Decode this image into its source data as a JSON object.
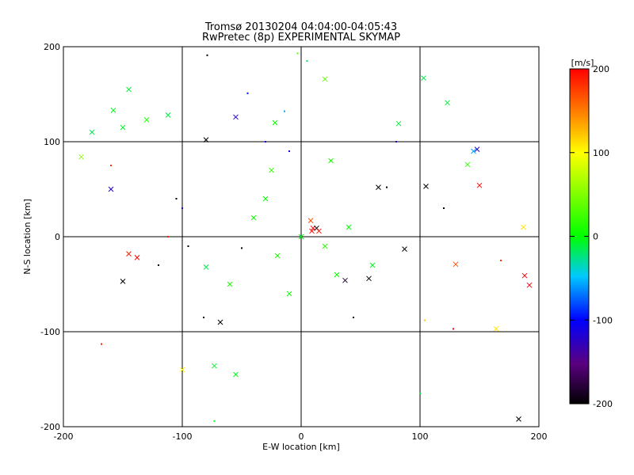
{
  "chart_data": {
    "type": "scatter",
    "title_line1": "Tromsø 20130204 04:04:00-04:05:43",
    "title_line2": "RwPretec (8p) EXPERIMENTAL SKYMAP",
    "xlabel": "E-W location [km]",
    "ylabel": "N-S location [km]",
    "xlim": [
      -200,
      200
    ],
    "ylim": [
      -200,
      200
    ],
    "xticks": [
      -200,
      -100,
      0,
      100,
      200
    ],
    "yticks": [
      -200,
      -100,
      0,
      100,
      200
    ],
    "grid": true,
    "colorbar": {
      "label": "[m/s]",
      "range": [
        -200,
        200
      ],
      "ticks": [
        200,
        100,
        0,
        -100,
        -200
      ],
      "colors": [
        "#000000",
        "#5a0080",
        "#0000ff",
        "#00c8ff",
        "#00ff00",
        "#ffff00",
        "#ff8000",
        "#ff0000"
      ]
    },
    "series": [
      {
        "marker": "x",
        "points": [
          [
            20,
            166,
            40
          ],
          [
            -55,
            126,
            -120
          ],
          [
            -80,
            102,
            -210
          ],
          [
            -22,
            120,
            0
          ],
          [
            -145,
            155,
            -10
          ],
          [
            -158,
            133,
            -5
          ],
          [
            -150,
            115,
            -8
          ],
          [
            -112,
            128,
            -12
          ],
          [
            -130,
            123,
            12
          ],
          [
            -176,
            110,
            -15
          ],
          [
            -185,
            84,
            55
          ],
          [
            -160,
            50,
            -120
          ],
          [
            103,
            167,
            -15
          ],
          [
            123,
            141,
            -10
          ],
          [
            82,
            119,
            -12
          ],
          [
            148,
            92,
            -120
          ],
          [
            145,
            90,
            -60
          ],
          [
            140,
            76,
            20
          ],
          [
            150,
            54,
            200
          ],
          [
            105,
            53,
            -210
          ],
          [
            65,
            52,
            -200
          ],
          [
            187,
            10,
            110
          ],
          [
            -145,
            -18,
            190
          ],
          [
            -138,
            -22,
            200
          ],
          [
            -150,
            -47,
            -210
          ],
          [
            -80,
            -32,
            -15
          ],
          [
            87,
            -13,
            -210
          ],
          [
            130,
            -29,
            170
          ],
          [
            188,
            -41,
            200
          ],
          [
            192,
            -51,
            200
          ],
          [
            57,
            -44,
            -210
          ],
          [
            37,
            -46,
            -180
          ],
          [
            -68,
            -90,
            -210
          ],
          [
            -100,
            -140,
            100
          ],
          [
            -55,
            -145,
            -5
          ],
          [
            -73,
            -136,
            -8
          ],
          [
            164,
            -97,
            110
          ],
          [
            183,
            -192,
            -210
          ],
          [
            10,
            9,
            200
          ],
          [
            9,
            6,
            200
          ],
          [
            13,
            9,
            -200
          ],
          [
            15,
            6,
            190
          ],
          [
            8,
            17,
            170
          ],
          [
            -30,
            40,
            0
          ],
          [
            -40,
            20,
            5
          ],
          [
            -20,
            -20,
            10
          ],
          [
            0,
            0,
            -5
          ],
          [
            20,
            -10,
            15
          ],
          [
            30,
            -40,
            0
          ],
          [
            -10,
            -60,
            5
          ],
          [
            40,
            10,
            0
          ],
          [
            -60,
            -50,
            10
          ],
          [
            60,
            -30,
            -5
          ],
          [
            -25,
            70,
            20
          ],
          [
            25,
            80,
            10
          ]
        ]
      },
      {
        "marker": "dot",
        "points": [
          [
            -79,
            191,
            -210
          ],
          [
            -3,
            193,
            30
          ],
          [
            -45,
            151,
            -100
          ],
          [
            -100,
            30,
            -130
          ],
          [
            -105,
            40,
            -200
          ],
          [
            120,
            30,
            -200
          ],
          [
            168,
            -25,
            180
          ],
          [
            -112,
            0,
            190
          ],
          [
            -95,
            -10,
            -200
          ],
          [
            -120,
            -30,
            -200
          ],
          [
            -50,
            -12,
            -200
          ],
          [
            -168,
            -113,
            190
          ],
          [
            -160,
            75,
            180
          ],
          [
            72,
            52,
            -200
          ],
          [
            -30,
            100,
            -120
          ],
          [
            -10,
            90,
            -110
          ],
          [
            80,
            100,
            -130
          ],
          [
            -82,
            -85,
            -200
          ],
          [
            44,
            -85,
            -200
          ],
          [
            104,
            -88,
            120
          ],
          [
            128,
            -97,
            200
          ],
          [
            100,
            -165,
            -10
          ],
          [
            -73,
            -194,
            -5
          ],
          [
            5,
            185,
            -20
          ],
          [
            -14,
            132,
            -60
          ]
        ]
      }
    ]
  }
}
